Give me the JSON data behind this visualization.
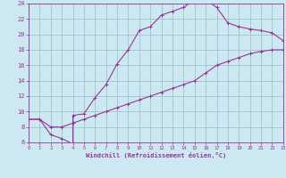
{
  "xlabel": "Windchill (Refroidissement éolien,°C)",
  "bg_color": "#cce8f0",
  "grid_color": "#99bbcc",
  "line_color": "#993399",
  "curve1_x": [
    0,
    1,
    2,
    3,
    4,
    4,
    5,
    6,
    7,
    8,
    9,
    10,
    11,
    12,
    13,
    14,
    15,
    16,
    17,
    18,
    19,
    20,
    21,
    22,
    23
  ],
  "curve1_y": [
    9,
    9,
    7,
    6.5,
    5.8,
    9.5,
    9.7,
    11.8,
    13.5,
    16.2,
    18,
    20.5,
    21,
    22.5,
    23,
    23.5,
    24.5,
    24.5,
    23.5,
    21.5,
    21,
    20.7,
    20.5,
    20.2,
    19.2
  ],
  "curve2_x": [
    0,
    1,
    2,
    3,
    4,
    5,
    6,
    7,
    8,
    9,
    10,
    11,
    12,
    13,
    14,
    15,
    16,
    17,
    18,
    19,
    20,
    21,
    22,
    23
  ],
  "curve2_y": [
    9,
    9,
    8,
    8,
    8.5,
    9,
    9.5,
    10,
    10.5,
    11,
    11.5,
    12,
    12.5,
    13,
    13.5,
    14,
    15,
    16,
    16.5,
    17,
    17.5,
    17.8,
    18,
    18
  ],
  "xmin": 0,
  "xmax": 23,
  "ymin": 6,
  "ymax": 24,
  "xticks": [
    0,
    1,
    2,
    3,
    4,
    5,
    6,
    7,
    8,
    9,
    10,
    11,
    12,
    13,
    14,
    15,
    16,
    17,
    18,
    19,
    20,
    21,
    22,
    23
  ],
  "yticks": [
    6,
    8,
    10,
    12,
    14,
    16,
    18,
    20,
    22,
    24
  ]
}
